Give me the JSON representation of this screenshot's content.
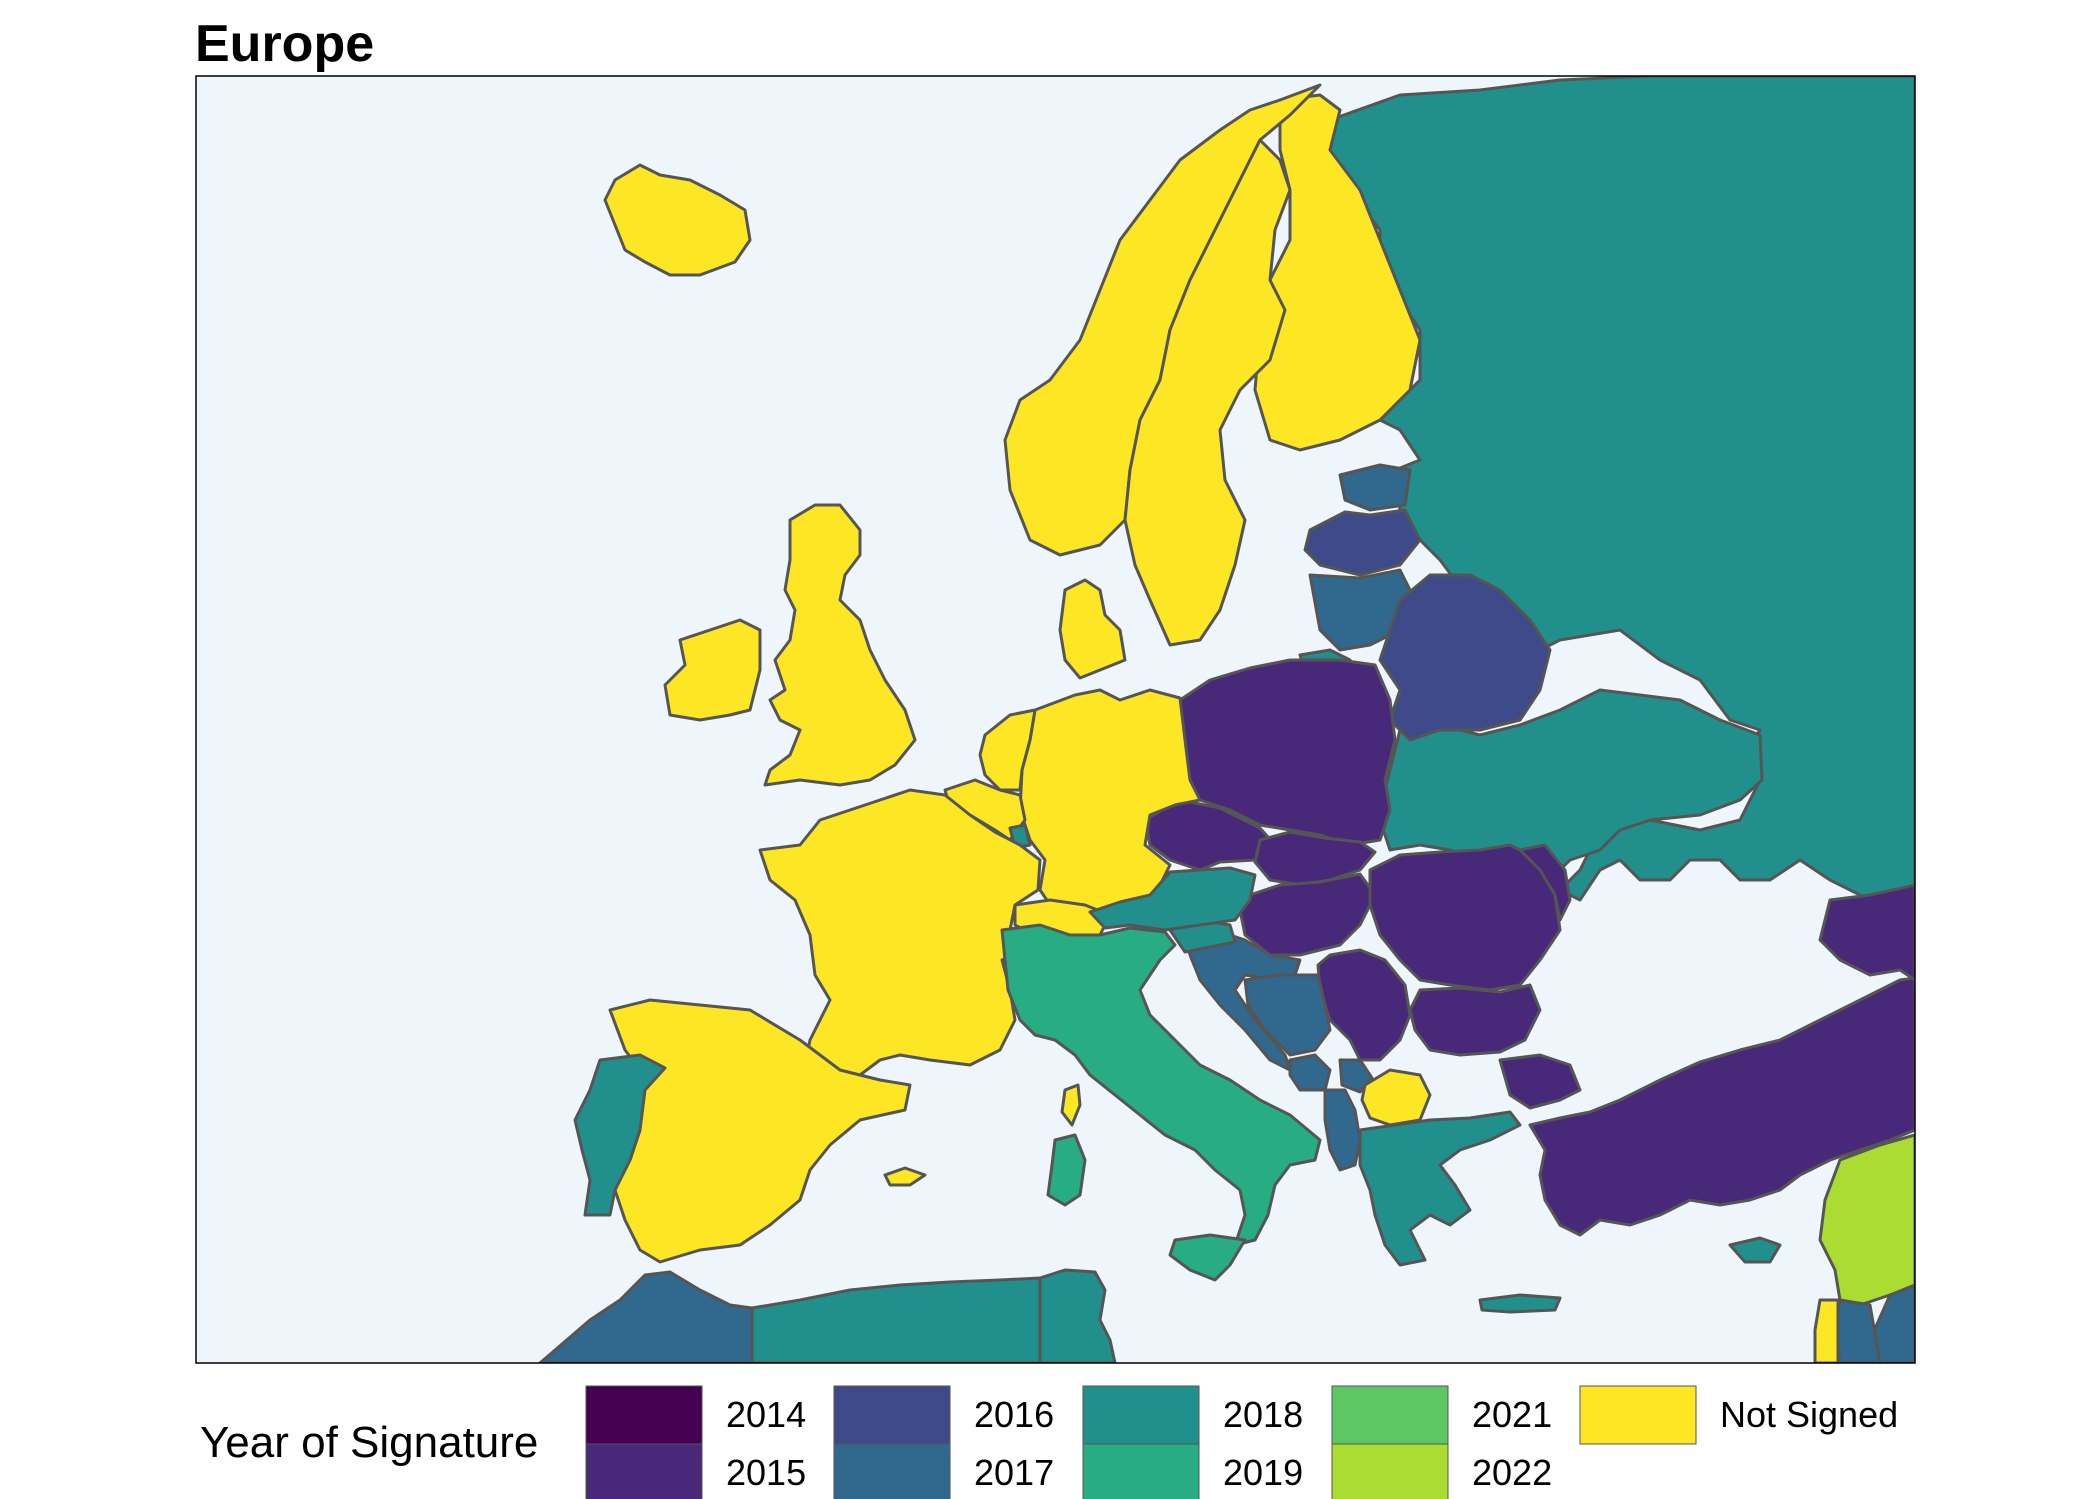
{
  "title": "Europe",
  "legend": {
    "title": "Year of Signature",
    "items": [
      {
        "label": "2014",
        "color": "#440154"
      },
      {
        "label": "2015",
        "color": "#482878"
      },
      {
        "label": "2016",
        "color": "#3E4A89"
      },
      {
        "label": "2017",
        "color": "#31688E"
      },
      {
        "label": "2018",
        "color": "#21908C"
      },
      {
        "label": "2019",
        "color": "#27AD81"
      },
      {
        "label": "2021",
        "color": "#5DC863"
      },
      {
        "label": "2022",
        "color": "#AADC32"
      },
      {
        "label": "Not Signed",
        "color": "#FDE725"
      }
    ]
  },
  "colors": {
    "sea": "#EEF6FC",
    "border": "#555555"
  }
}
